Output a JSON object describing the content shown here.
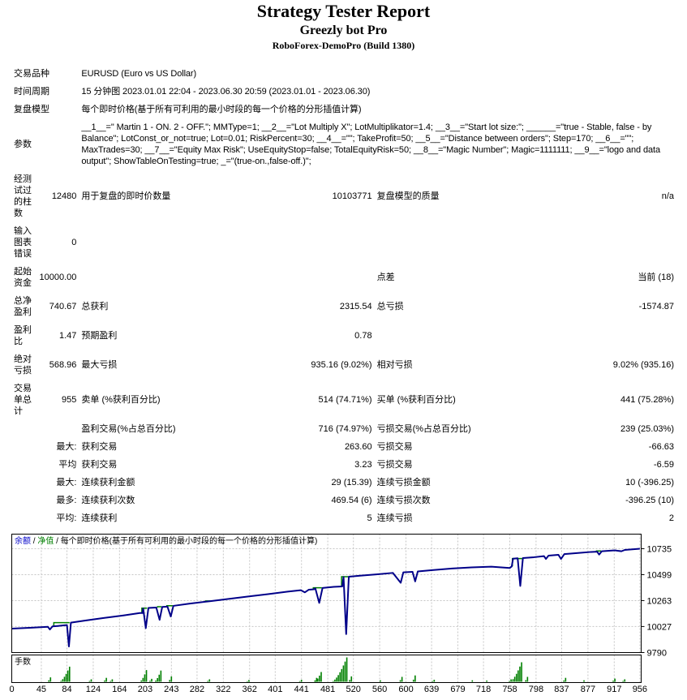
{
  "header": {
    "title": "Strategy Tester Report",
    "expert": "Greezly bot Pro",
    "server": "RoboForex-DemoPro (Build 1380)"
  },
  "table": {
    "rows": [
      {
        "c1": "交易品种",
        "span": "EURUSD (Euro vs US Dollar)"
      },
      {
        "c1": "时间周期",
        "span": "15 分钟图 2023.01.01 22:04 - 2023.06.30 20:59 (2023.01.01 - 2023.06.30)"
      },
      {
        "c1": "复盘模型",
        "span": "每个即时价格(基于所有可利用的最小时段的每一个价格的分形插值计算)"
      },
      {
        "c1": "参数",
        "span": "__1__=\" Martin 1 - ON. 2 - OFF.\"; MMType=1; __2__=\"Lot Multiply X\"; LotMultiplikator=1.4; __3__=\"Start lot size:\"; ______=\"true - Stable, false - by Balance\"; LotConst_or_not=true; Lot=0.01; RiskPercent=30; __4__=\"\"; TakeProfit=50; __5__=\"Distance between orders\"; Step=170; __6__=\"\"; MaxTrades=30; __7__=\"Equity Max Risk\"; UseEquityStop=false; TotalEquityRisk=50; __8__=\"Magic Number\"; Magic=1111111; __9__=\"logo and data output\"; ShowTableOnTesting=true; _=\"(true-on.,false-off.)\";"
      },
      {
        "c1": "经测试过的柱数",
        "c2": "12480",
        "c3": "用于复盘的即时价数量",
        "c4": "10103771",
        "c5": "复盘模型的质量",
        "c6": "n/a"
      },
      {
        "c1": "输入图表错误",
        "c2": "0",
        "c3": "",
        "c4": "",
        "c5": "",
        "c6": ""
      },
      {
        "c1": "起始资金",
        "c2": "10000.00",
        "c3": "",
        "c4": "",
        "c5": "点差",
        "c6": "当前 (18)"
      },
      {
        "c1": "总净盈利",
        "c2": "740.67",
        "c3": "总获利",
        "c4": "2315.54",
        "c5": "总亏损",
        "c6": "-1574.87"
      },
      {
        "c1": "盈利比",
        "c2": "1.47",
        "c3": "预期盈利",
        "c4": "0.78",
        "c5": "",
        "c6": ""
      },
      {
        "c1": "绝对亏损",
        "c2": "568.96",
        "c3": "最大亏损",
        "c4": "935.16 (9.02%)",
        "c5": "相对亏损",
        "c6": "9.02% (935.16)"
      },
      {
        "c1": "交易单总计",
        "c2": "955",
        "c3": "卖单 (%获利百分比)",
        "c4": "514 (74.71%)",
        "c5": "买单 (%获利百分比)",
        "c6": "441 (75.28%)"
      },
      {
        "c1": "",
        "c2": "",
        "c3": "盈利交易(%占总百分比)",
        "c4": "716 (74.97%)",
        "c5": "亏损交易(%占总百分比)",
        "c6": "239 (25.03%)"
      },
      {
        "c1": "",
        "c2": "最大:",
        "c3": "获利交易",
        "c4": "263.60",
        "c5": "亏损交易",
        "c6": "-66.63"
      },
      {
        "c1": "",
        "c2": "平均",
        "c3": "获利交易",
        "c4": "3.23",
        "c5": "亏损交易",
        "c6": "-6.59"
      },
      {
        "c1": "",
        "c2": "最大:",
        "c3": "连续获利金额",
        "c4": "29 (15.39)",
        "c5": "连续亏损金额",
        "c6": "10 (-396.25)"
      },
      {
        "c1": "",
        "c2": "最多:",
        "c3": "连续获利次数",
        "c4": "469.54 (6)",
        "c5": "连续亏损次数",
        "c6": "-396.25 (10)"
      },
      {
        "c1": "",
        "c2": "平均:",
        "c3": "连续获利",
        "c4": "5",
        "c5": "连续亏损",
        "c6": "2"
      }
    ]
  },
  "chart_data": {
    "type": "line",
    "legend": {
      "balance_label": "余额",
      "equity_label": "净值",
      "separator": " / ",
      "model_note": "每个即时价格(基于所有可利用的最小时段的每一个价格的分形插值计算)"
    },
    "lots_panel_label": "手数",
    "x_ticks": [
      0,
      45,
      84,
      124,
      164,
      203,
      243,
      282,
      322,
      362,
      401,
      441,
      481,
      520,
      560,
      600,
      639,
      679,
      718,
      758,
      798,
      837,
      877,
      917,
      956
    ],
    "y_ticks": [
      10735,
      10499,
      10263,
      10027,
      9790
    ],
    "x_max": 958,
    "y_top_value": 10868,
    "y_bottom_value": 9790,
    "balance_series": [
      [
        0,
        10008
      ],
      [
        30,
        10016
      ],
      [
        55,
        10024
      ],
      [
        58,
        10000
      ],
      [
        62,
        10028
      ],
      [
        70,
        10032
      ],
      [
        80,
        10038
      ],
      [
        84,
        10040
      ],
      [
        87,
        9845
      ],
      [
        90,
        10062
      ],
      [
        110,
        10080
      ],
      [
        140,
        10105
      ],
      [
        170,
        10128
      ],
      [
        195,
        10150
      ],
      [
        199,
        10150
      ],
      [
        200,
        10192
      ],
      [
        204,
        10012
      ],
      [
        208,
        10196
      ],
      [
        220,
        10200
      ],
      [
        225,
        10088
      ],
      [
        229,
        10205
      ],
      [
        237,
        10208
      ],
      [
        242,
        10118
      ],
      [
        246,
        10215
      ],
      [
        270,
        10235
      ],
      [
        300,
        10256
      ],
      [
        330,
        10278
      ],
      [
        360,
        10300
      ],
      [
        390,
        10322
      ],
      [
        420,
        10345
      ],
      [
        440,
        10358
      ],
      [
        446,
        10338
      ],
      [
        452,
        10362
      ],
      [
        460,
        10366
      ],
      [
        462,
        10375
      ],
      [
        468,
        10242
      ],
      [
        473,
        10378
      ],
      [
        490,
        10388
      ],
      [
        503,
        10392
      ],
      [
        505,
        10478
      ],
      [
        509,
        9958
      ],
      [
        513,
        10480
      ],
      [
        530,
        10490
      ],
      [
        555,
        10502
      ],
      [
        580,
        10515
      ],
      [
        592,
        10425
      ],
      [
        596,
        10520
      ],
      [
        610,
        10525
      ],
      [
        614,
        10438
      ],
      [
        618,
        10528
      ],
      [
        640,
        10540
      ],
      [
        670,
        10555
      ],
      [
        700,
        10565
      ],
      [
        730,
        10572
      ],
      [
        758,
        10560
      ],
      [
        761,
        10574
      ],
      [
        763,
        10645
      ],
      [
        770,
        10648
      ],
      [
        774,
        10396
      ],
      [
        778,
        10650
      ],
      [
        795,
        10658
      ],
      [
        810,
        10668
      ],
      [
        813,
        10642
      ],
      [
        817,
        10672
      ],
      [
        832,
        10680
      ],
      [
        836,
        10642
      ],
      [
        841,
        10686
      ],
      [
        862,
        10696
      ],
      [
        882,
        10706
      ],
      [
        891,
        10708
      ],
      [
        894,
        10682
      ],
      [
        898,
        10712
      ],
      [
        918,
        10720
      ],
      [
        928,
        10712
      ],
      [
        933,
        10724
      ],
      [
        956,
        10735
      ]
    ],
    "equity_segments": [
      [
        [
          64,
          10030
        ],
        [
          64,
          10062
        ],
        [
          88,
          10062
        ]
      ],
      [
        [
          198,
          10152
        ],
        [
          198,
          10194
        ],
        [
          206,
          10194
        ]
      ],
      [
        [
          222,
          10200
        ],
        [
          222,
          10207
        ],
        [
          228,
          10207
        ]
      ],
      [
        [
          236,
          10208
        ],
        [
          236,
          10216
        ],
        [
          245,
          10216
        ]
      ],
      [
        [
          295,
          10252
        ],
        [
          295,
          10260
        ],
        [
          302,
          10260
        ]
      ],
      [
        [
          459,
          10366
        ],
        [
          459,
          10380
        ],
        [
          472,
          10380
        ]
      ],
      [
        [
          502,
          10392
        ],
        [
          502,
          10480
        ],
        [
          512,
          10480
        ]
      ],
      [
        [
          762,
          10575
        ],
        [
          762,
          10646
        ],
        [
          777,
          10646
        ]
      ],
      [
        [
          890,
          10708
        ],
        [
          890,
          10715
        ],
        [
          897,
          10715
        ]
      ]
    ],
    "lot_clusters": [
      {
        "x": 58,
        "peak": 0.18
      },
      {
        "x": 87,
        "peak": 0.62
      },
      {
        "x": 120,
        "peak": 0.1
      },
      {
        "x": 143,
        "peak": 0.16
      },
      {
        "x": 152,
        "peak": 0.1
      },
      {
        "x": 204,
        "peak": 0.48
      },
      {
        "x": 212,
        "peak": 0.12
      },
      {
        "x": 226,
        "peak": 0.46
      },
      {
        "x": 242,
        "peak": 0.22
      },
      {
        "x": 300,
        "peak": 0.1
      },
      {
        "x": 360,
        "peak": 0.07
      },
      {
        "x": 440,
        "peak": 0.08
      },
      {
        "x": 463,
        "peak": 0.16
      },
      {
        "x": 470,
        "peak": 0.4
      },
      {
        "x": 509,
        "peak": 1.0
      },
      {
        "x": 516,
        "peak": 0.22
      },
      {
        "x": 560,
        "peak": 0.06
      },
      {
        "x": 593,
        "peak": 0.2
      },
      {
        "x": 613,
        "peak": 0.26
      },
      {
        "x": 642,
        "peak": 0.08
      },
      {
        "x": 700,
        "peak": 0.06
      },
      {
        "x": 722,
        "peak": 0.05
      },
      {
        "x": 759,
        "peak": 0.1
      },
      {
        "x": 775,
        "peak": 0.8
      },
      {
        "x": 784,
        "peak": 0.2
      },
      {
        "x": 842,
        "peak": 0.16
      },
      {
        "x": 870,
        "peak": 0.06
      },
      {
        "x": 917,
        "peak": 0.13
      },
      {
        "x": 932,
        "peak": 0.1
      }
    ],
    "colors": {
      "balance": "#000089",
      "equity": "#008000",
      "lots": "#008000",
      "grid": "#c6c6c6",
      "border": "#000000",
      "balance_label": "#0000c8",
      "equity_label": "#008000",
      "text": "#000000"
    }
  }
}
